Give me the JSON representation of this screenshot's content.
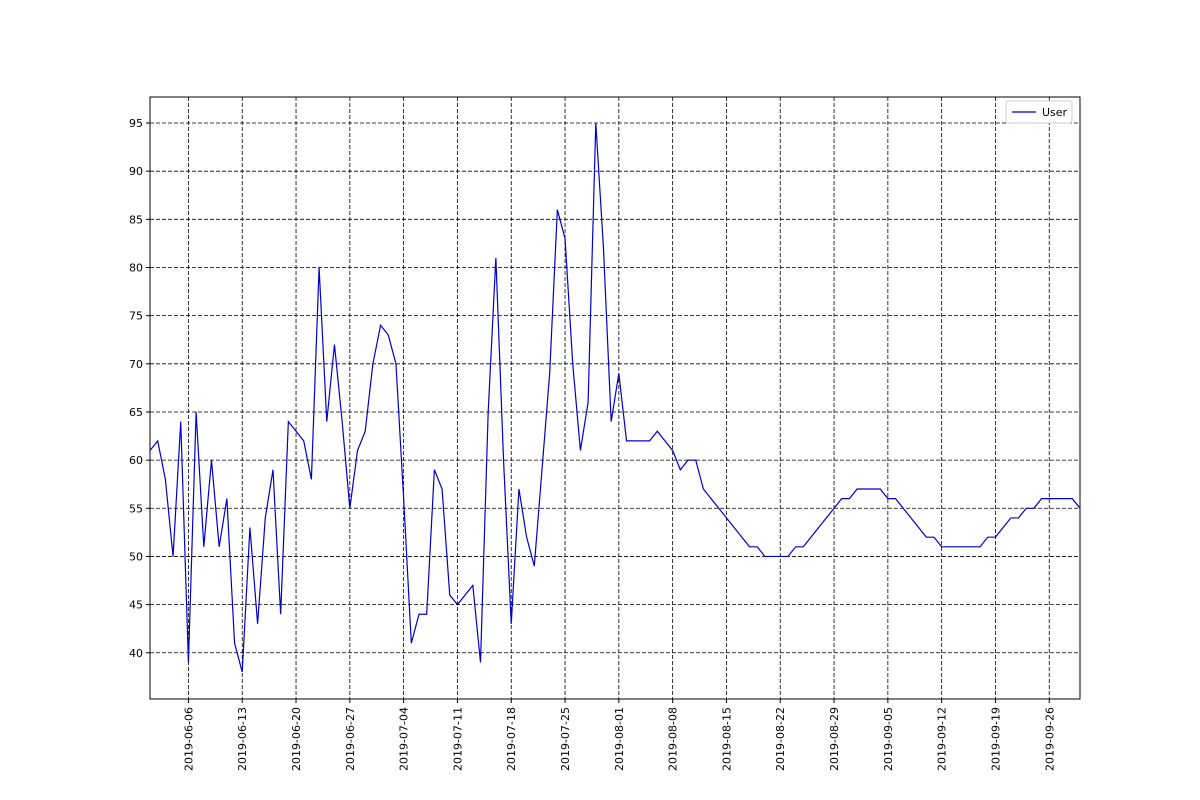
{
  "chart_data": {
    "type": "line",
    "x": [
      "2019-06-01",
      "2019-06-02",
      "2019-06-03",
      "2019-06-04",
      "2019-06-05",
      "2019-06-06",
      "2019-06-07",
      "2019-06-08",
      "2019-06-09",
      "2019-06-10",
      "2019-06-11",
      "2019-06-12",
      "2019-06-13",
      "2019-06-14",
      "2019-06-15",
      "2019-06-16",
      "2019-06-17",
      "2019-06-18",
      "2019-06-19",
      "2019-06-20",
      "2019-06-21",
      "2019-06-22",
      "2019-06-23",
      "2019-06-24",
      "2019-06-25",
      "2019-06-26",
      "2019-06-27",
      "2019-06-28",
      "2019-06-29",
      "2019-06-30",
      "2019-07-01",
      "2019-07-02",
      "2019-07-03",
      "2019-07-04",
      "2019-07-05",
      "2019-07-06",
      "2019-07-07",
      "2019-07-08",
      "2019-07-09",
      "2019-07-10",
      "2019-07-11",
      "2019-07-12",
      "2019-07-13",
      "2019-07-14",
      "2019-07-15",
      "2019-07-16",
      "2019-07-17",
      "2019-07-18",
      "2019-07-19",
      "2019-07-20",
      "2019-07-21",
      "2019-07-22",
      "2019-07-23",
      "2019-07-24",
      "2019-07-25",
      "2019-07-26",
      "2019-07-27",
      "2019-07-28",
      "2019-07-29",
      "2019-07-30",
      "2019-07-31",
      "2019-08-01",
      "2019-08-02",
      "2019-08-03",
      "2019-08-04",
      "2019-08-05",
      "2019-08-06",
      "2019-08-07",
      "2019-08-08",
      "2019-08-09",
      "2019-08-10",
      "2019-08-11",
      "2019-08-12",
      "2019-08-13",
      "2019-08-14",
      "2019-08-15",
      "2019-08-16",
      "2019-08-17",
      "2019-08-18",
      "2019-08-19",
      "2019-08-20",
      "2019-08-21",
      "2019-08-22",
      "2019-08-23",
      "2019-08-24",
      "2019-08-25",
      "2019-08-26",
      "2019-08-27",
      "2019-08-28",
      "2019-08-29",
      "2019-08-30",
      "2019-08-31",
      "2019-09-01",
      "2019-09-02",
      "2019-09-03",
      "2019-09-04",
      "2019-09-05",
      "2019-09-06",
      "2019-09-07",
      "2019-09-08",
      "2019-09-09",
      "2019-09-10",
      "2019-09-11",
      "2019-09-12",
      "2019-09-13",
      "2019-09-14",
      "2019-09-15",
      "2019-09-16",
      "2019-09-17",
      "2019-09-18",
      "2019-09-19",
      "2019-09-20",
      "2019-09-21",
      "2019-09-22",
      "2019-09-23",
      "2019-09-24",
      "2019-09-25",
      "2019-09-26",
      "2019-09-27",
      "2019-09-28",
      "2019-09-29",
      "2019-09-30"
    ],
    "series": [
      {
        "name": "User",
        "color": "#0000cc",
        "values": [
          61,
          62,
          58,
          50,
          64,
          39,
          65,
          51,
          60,
          51,
          56,
          41,
          38,
          53,
          43,
          54,
          59,
          44,
          64,
          63,
          62,
          58,
          80,
          64,
          72,
          64,
          55,
          61,
          63,
          70,
          74,
          73,
          70,
          56,
          41,
          44,
          44,
          59,
          57,
          46,
          45,
          46,
          47,
          39,
          65,
          81,
          60,
          43,
          57,
          52,
          49,
          59,
          69,
          86,
          83,
          70,
          61,
          66,
          95,
          82,
          64,
          69,
          62,
          62,
          62,
          62,
          63,
          62,
          61,
          59,
          60,
          60,
          57,
          56,
          55,
          54,
          53,
          52,
          51,
          51,
          50,
          50,
          50,
          50,
          51,
          51,
          52,
          53,
          54,
          55,
          56,
          56,
          57,
          57,
          57,
          57,
          56,
          56,
          55,
          54,
          53,
          52,
          52,
          51,
          51,
          51,
          51,
          51,
          51,
          52,
          52,
          53,
          54,
          54,
          55,
          55,
          56,
          56,
          56,
          56,
          56,
          55
        ]
      }
    ],
    "xlim": [
      "2019-06-01",
      "2019-09-30"
    ],
    "xticks": [
      "2019-06-06",
      "2019-06-13",
      "2019-06-20",
      "2019-06-27",
      "2019-07-04",
      "2019-07-11",
      "2019-07-18",
      "2019-07-25",
      "2019-08-01",
      "2019-08-08",
      "2019-08-15",
      "2019-08-22",
      "2019-08-29",
      "2019-09-05",
      "2019-09-12",
      "2019-09-19",
      "2019-09-26"
    ],
    "ylim": [
      35.2,
      97.7
    ],
    "yticks": [
      40,
      45,
      50,
      55,
      60,
      65,
      70,
      75,
      80,
      85,
      90,
      95
    ],
    "grid": true,
    "legend": "upper-right"
  }
}
